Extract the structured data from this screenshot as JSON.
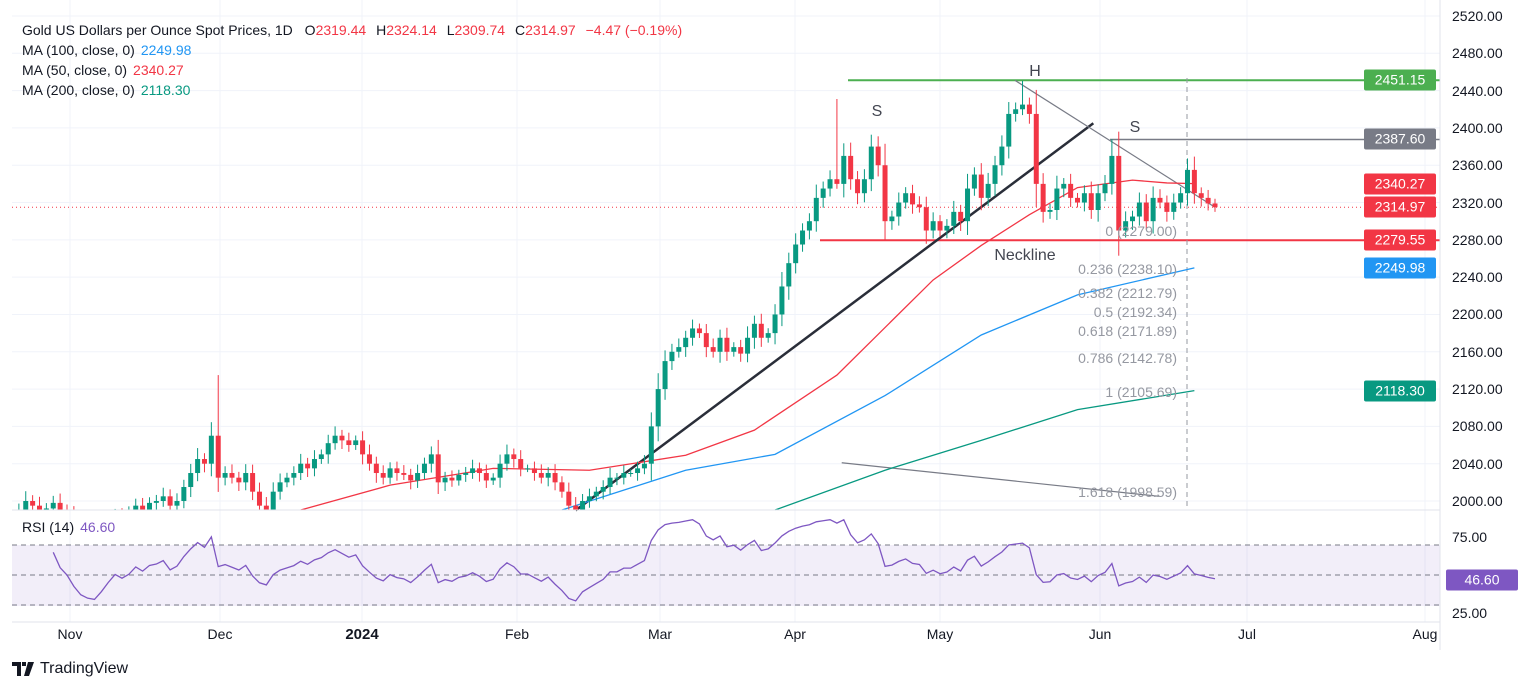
{
  "header": {
    "symbol_title": "Gold US Dollars per Ounce Spot Prices, 1D",
    "open_label": "O",
    "open": "2319.44",
    "high_label": "H",
    "high": "2324.14",
    "low_label": "L",
    "low": "2309.74",
    "close_label": "C",
    "close": "2314.97",
    "change": "−4.47 (−0.19%)"
  },
  "indicators": [
    {
      "label": "MA (100, close, 0)",
      "value": "2249.98",
      "color": "#2196f3"
    },
    {
      "label": "MA (50, close, 0)",
      "value": "2340.27",
      "color": "#f23645"
    },
    {
      "label": "MA (200, close, 0)",
      "value": "2118.30",
      "color": "#089981"
    }
  ],
  "rsi": {
    "label": "RSI (14)",
    "value": "46.60",
    "ticks": [
      "75.00",
      "25.00"
    ],
    "levels": [
      70,
      50,
      30
    ],
    "color": "#7e57c2"
  },
  "price_badges": [
    {
      "value": "2451.15",
      "price": 2451.15,
      "color": "#4caf50"
    },
    {
      "value": "2387.60",
      "price": 2387.6,
      "color": "#787b86"
    },
    {
      "value": "2340.27",
      "price": 2340.27,
      "color": "#f23645"
    },
    {
      "value": "2314.97",
      "price": 2314.97,
      "color": "#f23645"
    },
    {
      "value": "2279.55",
      "price": 2279.55,
      "color": "#f23645"
    },
    {
      "value": "2249.98",
      "price": 2249.98,
      "color": "#2196f3"
    },
    {
      "value": "2118.30",
      "price": 2118.3,
      "color": "#089981"
    }
  ],
  "time_labels": [
    "Nov",
    "Dec",
    "2024",
    "Feb",
    "Mar",
    "Apr",
    "May",
    "Jun",
    "Jul",
    "Aug"
  ],
  "annotations": {
    "head": "H",
    "left_shoulder": "S",
    "right_shoulder": "S",
    "neckline": "Neckline"
  },
  "fib_levels": [
    {
      "label": "0 (2279.00)",
      "price": 2279.0
    },
    {
      "label": "0.236 (2238.10)",
      "price": 2238.1
    },
    {
      "label": "0.382 (2212.79)",
      "price": 2212.79
    },
    {
      "label": "0.5 (2192.34)",
      "price": 2192.34
    },
    {
      "label": "0.618 (2171.89)",
      "price": 2171.89
    },
    {
      "label": "0.786 (2142.78)",
      "price": 2142.78
    },
    {
      "label": "1 (2105.69)",
      "price": 2105.69
    },
    {
      "label": "1.618 (1998.59)",
      "price": 1998.59
    }
  ],
  "branding": "TradingView",
  "chart_data": {
    "type": "candlestick",
    "title": "Gold US Dollars per Ounce Spot Prices, 1D",
    "ylim": [
      2000,
      2520
    ],
    "yticks": [
      "2520.00",
      "2480.00",
      "2440.00",
      "2400.00",
      "2360.00",
      "2320.00",
      "2280.00",
      "2240.00",
      "2200.00",
      "2160.00",
      "2120.00",
      "2080.00",
      "2040.00",
      "2000.00"
    ],
    "closes": [
      1985,
      1990,
      2000,
      1995,
      1985,
      1992,
      1998,
      1990,
      1985,
      1975,
      1965,
      1960,
      1958,
      1965,
      1975,
      1985,
      1980,
      1985,
      1995,
      1990,
      1998,
      2000,
      2005,
      1995,
      2000,
      2015,
      2030,
      2045,
      2040,
      2070,
      2025,
      2030,
      2025,
      2020,
      2030,
      2010,
      1995,
      1990,
      2010,
      2020,
      2025,
      2030,
      2040,
      2035,
      2045,
      2050,
      2062,
      2070,
      2065,
      2060,
      2065,
      2050,
      2040,
      2030,
      2025,
      2035,
      2030,
      2028,
      2022,
      2030,
      2040,
      2050,
      2020,
      2025,
      2022,
      2028,
      2030,
      2035,
      2030,
      2022,
      2025,
      2040,
      2050,
      2045,
      2035,
      2035,
      2030,
      2025,
      2030,
      2020,
      2010,
      1995,
      1990,
      2000,
      2005,
      2010,
      2015,
      2025,
      2025,
      2030,
      2030,
      2035,
      2040,
      2080,
      2120,
      2150,
      2160,
      2165,
      2175,
      2185,
      2180,
      2165,
      2160,
      2175,
      2160,
      2165,
      2158,
      2175,
      2190,
      2175,
      2180,
      2200,
      2230,
      2255,
      2275,
      2290,
      2300,
      2325,
      2335,
      2345,
      2340,
      2370,
      2345,
      2330,
      2345,
      2380,
      2360,
      2300,
      2305,
      2320,
      2330,
      2318,
      2315,
      2290,
      2300,
      2290,
      2295,
      2310,
      2300,
      2335,
      2350,
      2325,
      2340,
      2360,
      2380,
      2415,
      2420,
      2425,
      2415,
      2340,
      2310,
      2312,
      2335,
      2340,
      2325,
      2320,
      2330,
      2312,
      2330,
      2340,
      2370,
      2290,
      2300,
      2305,
      2320,
      2300,
      2325,
      2320,
      2310,
      2320,
      2330,
      2355,
      2330,
      2325,
      2319,
      2315
    ],
    "high_overrides": [
      [
        30,
        2135
      ],
      [
        120,
        2431
      ],
      [
        147,
        2450.5
      ],
      [
        160,
        2388
      ]
    ],
    "moving_averages": [
      {
        "name": "MA 50",
        "color": "#f23645",
        "points": [
          [
            42,
            1990
          ],
          [
            55,
            2017
          ],
          [
            70,
            2035
          ],
          [
            84,
            2033
          ],
          [
            98,
            2049
          ],
          [
            108,
            2076
          ],
          [
            120,
            2135
          ],
          [
            134,
            2237
          ],
          [
            141,
            2274
          ],
          [
            148,
            2307
          ],
          [
            155,
            2336
          ],
          [
            163,
            2344
          ],
          [
            168,
            2341
          ],
          [
            172,
            2340.27
          ]
        ]
      },
      {
        "name": "MA 100",
        "color": "#2196f3",
        "points": [
          [
            80,
            1990
          ],
          [
            98,
            2033
          ],
          [
            111,
            2050
          ],
          [
            127,
            2113
          ],
          [
            141,
            2178
          ],
          [
            155,
            2221
          ],
          [
            172,
            2249.98
          ]
        ]
      },
      {
        "name": "MA 200",
        "color": "#089981",
        "points": [
          [
            111,
            1990
          ],
          [
            127,
            2033
          ],
          [
            141,
            2065
          ],
          [
            155,
            2098
          ],
          [
            172,
            2118.3
          ]
        ]
      }
    ],
    "drawings": {
      "head_level": 2451.15,
      "right_shoulder_level": 2387.6,
      "neckline_level": 2279.55,
      "last_price": 2314.97,
      "uptrend_line": [
        [
          82,
          1990
        ],
        [
          157.3,
          2405
        ]
      ],
      "downtrend_line": [
        [
          145.9,
          2451
        ],
        [
          175,
          2315
        ]
      ],
      "fib_extension_line": [
        [
          120.7,
          2041
        ],
        [
          166.9,
          2005
        ]
      ]
    }
  }
}
